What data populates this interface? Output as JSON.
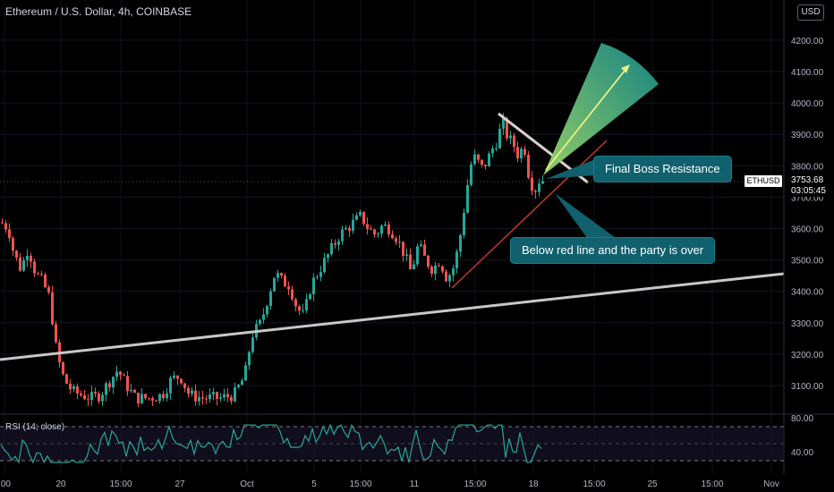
{
  "header": {
    "title": "Ethereum / U.S. Dollar, 4h, COINBASE",
    "currency": "USD"
  },
  "price_tag": {
    "symbol": "ETHUSD",
    "price": "3753.68",
    "countdown": "03:05:45"
  },
  "annotations": {
    "resistance": "Final Boss Resistance",
    "support": "Below red line and the party is over"
  },
  "colors": {
    "bull": "#26a69a",
    "bear": "#ef5350",
    "trendline": "#c0c0c0",
    "support_line": "#c0392b",
    "rsi_line": "#26a69a",
    "callout_bg": "#10606d"
  },
  "chart_data": [
    {
      "type": "candlestick",
      "title": "Ethereum / U.S. Dollar, 4h, COINBASE",
      "xlabel": "",
      "ylabel": "",
      "y_ticks": [
        "4200.00",
        "4100.00",
        "4000.00",
        "3900.00",
        "3800.00",
        "3700.00",
        "3600.00",
        "3500.00",
        "3400.00",
        "3300.00",
        "3200.00",
        "3100.00"
      ],
      "x_ticks": [
        ":00",
        "20",
        "15:00",
        "27",
        "Oct",
        "5",
        "15:00",
        "11",
        "15:00",
        "18",
        "15:00",
        "25",
        "15:00",
        "Nov"
      ],
      "ylim": [
        3060,
        4290
      ],
      "last_price": 3753.68,
      "price_path": [
        {
          "x": 0,
          "y": 3620
        },
        {
          "x": 8,
          "y": 3600
        },
        {
          "x": 14,
          "y": 3520
        },
        {
          "x": 22,
          "y": 3470
        },
        {
          "x": 30,
          "y": 3540
        },
        {
          "x": 38,
          "y": 3460
        },
        {
          "x": 46,
          "y": 3430
        },
        {
          "x": 54,
          "y": 3380
        },
        {
          "x": 62,
          "y": 3200
        },
        {
          "x": 70,
          "y": 3120
        },
        {
          "x": 80,
          "y": 3080
        },
        {
          "x": 90,
          "y": 3070
        },
        {
          "x": 100,
          "y": 3060
        },
        {
          "x": 110,
          "y": 3070
        },
        {
          "x": 120,
          "y": 3110
        },
        {
          "x": 130,
          "y": 3150
        },
        {
          "x": 140,
          "y": 3100
        },
        {
          "x": 150,
          "y": 3060
        },
        {
          "x": 165,
          "y": 3060
        },
        {
          "x": 180,
          "y": 3070
        },
        {
          "x": 190,
          "y": 3120
        },
        {
          "x": 200,
          "y": 3130
        },
        {
          "x": 210,
          "y": 3070
        },
        {
          "x": 225,
          "y": 3060
        },
        {
          "x": 245,
          "y": 3060
        },
        {
          "x": 260,
          "y": 3070
        },
        {
          "x": 272,
          "y": 3130
        },
        {
          "x": 280,
          "y": 3260
        },
        {
          "x": 290,
          "y": 3300
        },
        {
          "x": 298,
          "y": 3380
        },
        {
          "x": 306,
          "y": 3460
        },
        {
          "x": 314,
          "y": 3430
        },
        {
          "x": 322,
          "y": 3420
        },
        {
          "x": 330,
          "y": 3350
        },
        {
          "x": 338,
          "y": 3320
        },
        {
          "x": 346,
          "y": 3420
        },
        {
          "x": 354,
          "y": 3460
        },
        {
          "x": 362,
          "y": 3500
        },
        {
          "x": 370,
          "y": 3540
        },
        {
          "x": 378,
          "y": 3580
        },
        {
          "x": 386,
          "y": 3600
        },
        {
          "x": 394,
          "y": 3620
        },
        {
          "x": 402,
          "y": 3640
        },
        {
          "x": 410,
          "y": 3600
        },
        {
          "x": 418,
          "y": 3580
        },
        {
          "x": 426,
          "y": 3610
        },
        {
          "x": 434,
          "y": 3600
        },
        {
          "x": 442,
          "y": 3570
        },
        {
          "x": 450,
          "y": 3520
        },
        {
          "x": 458,
          "y": 3460
        },
        {
          "x": 466,
          "y": 3550
        },
        {
          "x": 474,
          "y": 3500
        },
        {
          "x": 482,
          "y": 3470
        },
        {
          "x": 490,
          "y": 3500
        },
        {
          "x": 498,
          "y": 3440
        },
        {
          "x": 506,
          "y": 3480
        },
        {
          "x": 512,
          "y": 3560
        },
        {
          "x": 518,
          "y": 3680
        },
        {
          "x": 524,
          "y": 3800
        },
        {
          "x": 530,
          "y": 3830
        },
        {
          "x": 536,
          "y": 3790
        },
        {
          "x": 542,
          "y": 3810
        },
        {
          "x": 548,
          "y": 3850
        },
        {
          "x": 554,
          "y": 3880
        },
        {
          "x": 560,
          "y": 3940
        },
        {
          "x": 566,
          "y": 3890
        },
        {
          "x": 572,
          "y": 3870
        },
        {
          "x": 578,
          "y": 3830
        },
        {
          "x": 584,
          "y": 3870
        },
        {
          "x": 590,
          "y": 3760
        },
        {
          "x": 596,
          "y": 3720
        },
        {
          "x": 602,
          "y": 3760
        },
        {
          "x": 608,
          "y": 3750
        }
      ],
      "rsi": {
        "label": "RSI (14; close)",
        "y_ticks": [
          "80.00",
          "40.00"
        ],
        "ylim": [
          20,
          85
        ],
        "levels": [
          70,
          50,
          30
        ]
      }
    }
  ]
}
